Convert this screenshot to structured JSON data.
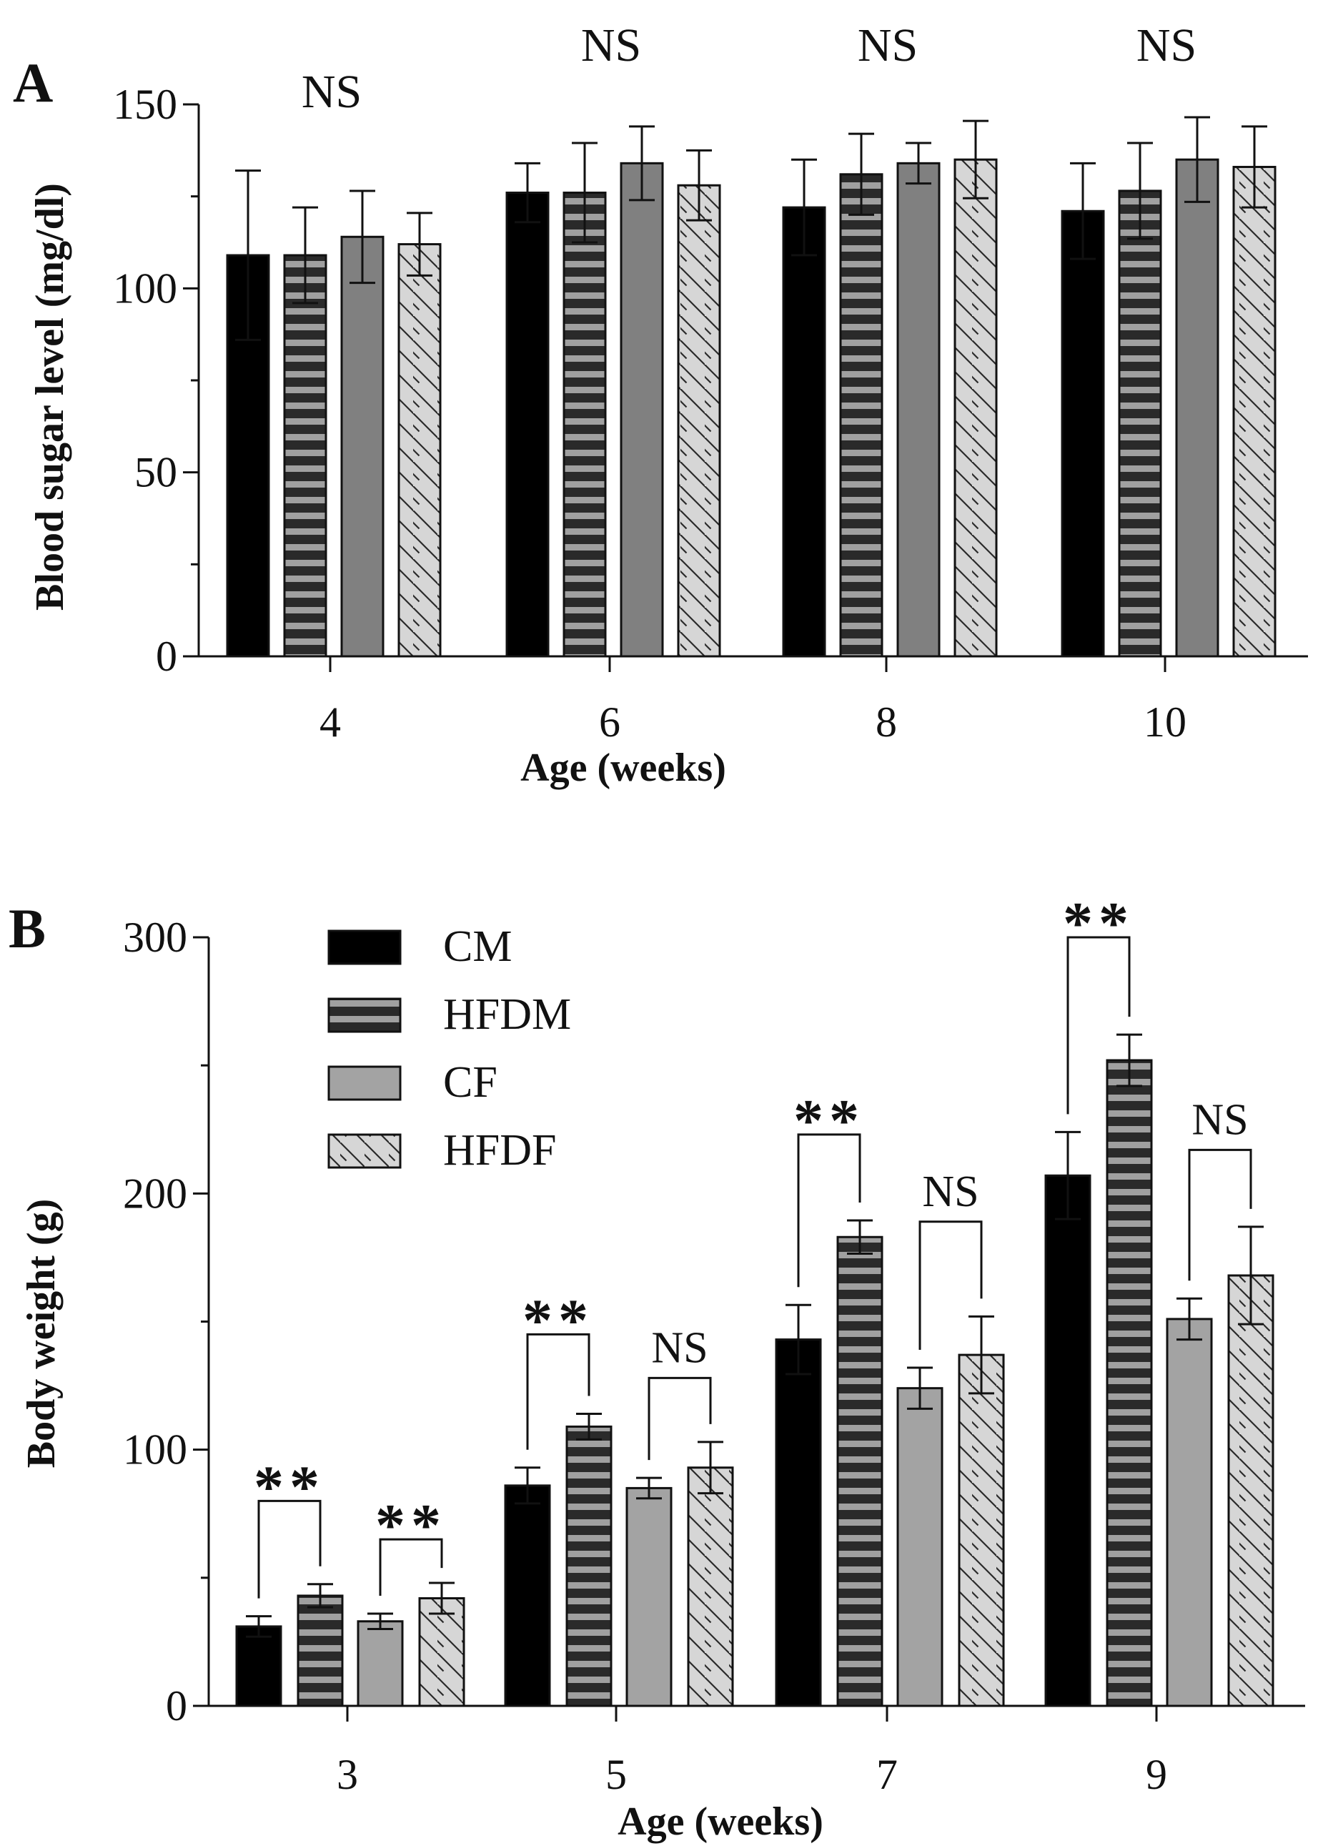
{
  "colors": {
    "ink": "#111111",
    "cm": "#000000",
    "hfdm_dark": "#2a2a2a",
    "hfdm_light": "#a0a0a0",
    "cf_a": "#808080",
    "cf_b": "#a3a3a3",
    "hfdf_bg": "#d6d6d6",
    "hatch": "#2a2a2a"
  },
  "chart_data": [
    {
      "panel": "A",
      "type": "bar",
      "xlabel": "Age (weeks)",
      "ylabel": "Blood sugar level (mg/dl)",
      "ylim": [
        0,
        150
      ],
      "yticks": [
        0,
        50,
        100,
        150
      ],
      "categories": [
        "4",
        "6",
        "8",
        "10"
      ],
      "series": [
        {
          "name": "CM",
          "values": [
            109,
            126,
            122,
            121
          ],
          "errors": [
            23,
            8,
            13,
            13
          ]
        },
        {
          "name": "HFDM",
          "values": [
            109,
            126,
            131,
            126.5
          ],
          "errors": [
            13,
            13.5,
            11,
            13
          ]
        },
        {
          "name": "CF",
          "values": [
            114,
            134,
            134,
            135
          ],
          "errors": [
            12.5,
            10,
            5.5,
            11.5
          ]
        },
        {
          "name": "HFDF",
          "values": [
            112,
            128,
            135,
            133
          ],
          "errors": [
            8.5,
            9.5,
            10.5,
            11
          ]
        }
      ],
      "annotations": [
        {
          "category": "4",
          "text": "NS",
          "bracket": false
        },
        {
          "category": "6",
          "text": "NS",
          "bracket": false
        },
        {
          "category": "8",
          "text": "NS",
          "bracket": false
        },
        {
          "category": "10",
          "text": "NS",
          "bracket": false
        }
      ]
    },
    {
      "panel": "B",
      "type": "bar",
      "xlabel": "Age (weeks)",
      "ylabel": "Body weight (g)",
      "ylim": [
        0,
        300
      ],
      "yticks": [
        0,
        100,
        200,
        300
      ],
      "categories": [
        "3",
        "5",
        "7",
        "9"
      ],
      "legend": [
        "CM",
        "HFDM",
        "CF",
        "HFDF"
      ],
      "legend_position": "top-left",
      "series": [
        {
          "name": "CM",
          "values": [
            31,
            86,
            143,
            207
          ],
          "errors": [
            4,
            7,
            13.5,
            17
          ]
        },
        {
          "name": "HFDM",
          "values": [
            43,
            109,
            183,
            252
          ],
          "errors": [
            4.5,
            5,
            6.5,
            10
          ]
        },
        {
          "name": "CF",
          "values": [
            33,
            85,
            124,
            151
          ],
          "errors": [
            3,
            4,
            8,
            8
          ]
        },
        {
          "name": "HFDF",
          "values": [
            42,
            93,
            137,
            168
          ],
          "errors": [
            6,
            10,
            15,
            19
          ]
        }
      ],
      "annotations": [
        {
          "category": "3",
          "pair": [
            "CM",
            "HFDM"
          ],
          "text": "**",
          "level": 80
        },
        {
          "category": "3",
          "pair": [
            "CF",
            "HFDF"
          ],
          "text": "**",
          "level": 65
        },
        {
          "category": "5",
          "pair": [
            "CM",
            "HFDM"
          ],
          "text": "**",
          "level": 145
        },
        {
          "category": "5",
          "pair": [
            "CF",
            "HFDF"
          ],
          "text": "NS",
          "level": 128
        },
        {
          "category": "7",
          "pair": [
            "CM",
            "HFDM"
          ],
          "text": "**",
          "level": 223
        },
        {
          "category": "7",
          "pair": [
            "CF",
            "HFDF"
          ],
          "text": "NS",
          "level": 189
        },
        {
          "category": "9",
          "pair": [
            "CM",
            "HFDM"
          ],
          "text": "**",
          "level": 300
        },
        {
          "category": "9",
          "pair": [
            "CF",
            "HFDF"
          ],
          "text": "NS",
          "level": 217
        }
      ]
    }
  ]
}
